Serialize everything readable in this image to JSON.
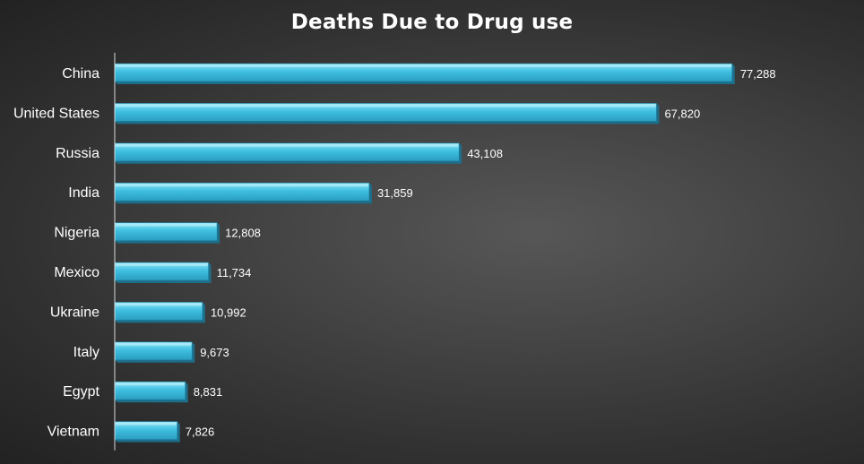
{
  "chart_data": {
    "type": "bar",
    "orientation": "horizontal",
    "title": "Deaths Due to Drug use",
    "categories": [
      "China",
      "United States",
      "Russia",
      "India",
      "Nigeria",
      "Mexico",
      "Ukraine",
      "Italy",
      "Egypt",
      "Vietnam"
    ],
    "values": [
      77288,
      67820,
      43108,
      31859,
      12808,
      11734,
      10992,
      9673,
      8831,
      7826
    ],
    "value_labels": [
      "77,288",
      "67,820",
      "43,108",
      "31,859",
      "12,808",
      "11,734",
      "10,992",
      "9,673",
      "8,831",
      "7,826"
    ],
    "xlim": [
      0,
      80000
    ],
    "xlabel": "",
    "ylabel": "",
    "grid": false,
    "legend": "none",
    "colors": {
      "bar_top": "#8fe6f8",
      "bar_mid": "#3fbfe0",
      "bar_bottom": "#2a9dc0",
      "bar_side": "#1f7f9f",
      "bar_shadow": "#1d6e8a",
      "axis": "#d8d8d8",
      "text": "#ffffff",
      "background_center": "#575757",
      "background_edge": "#222222"
    }
  }
}
